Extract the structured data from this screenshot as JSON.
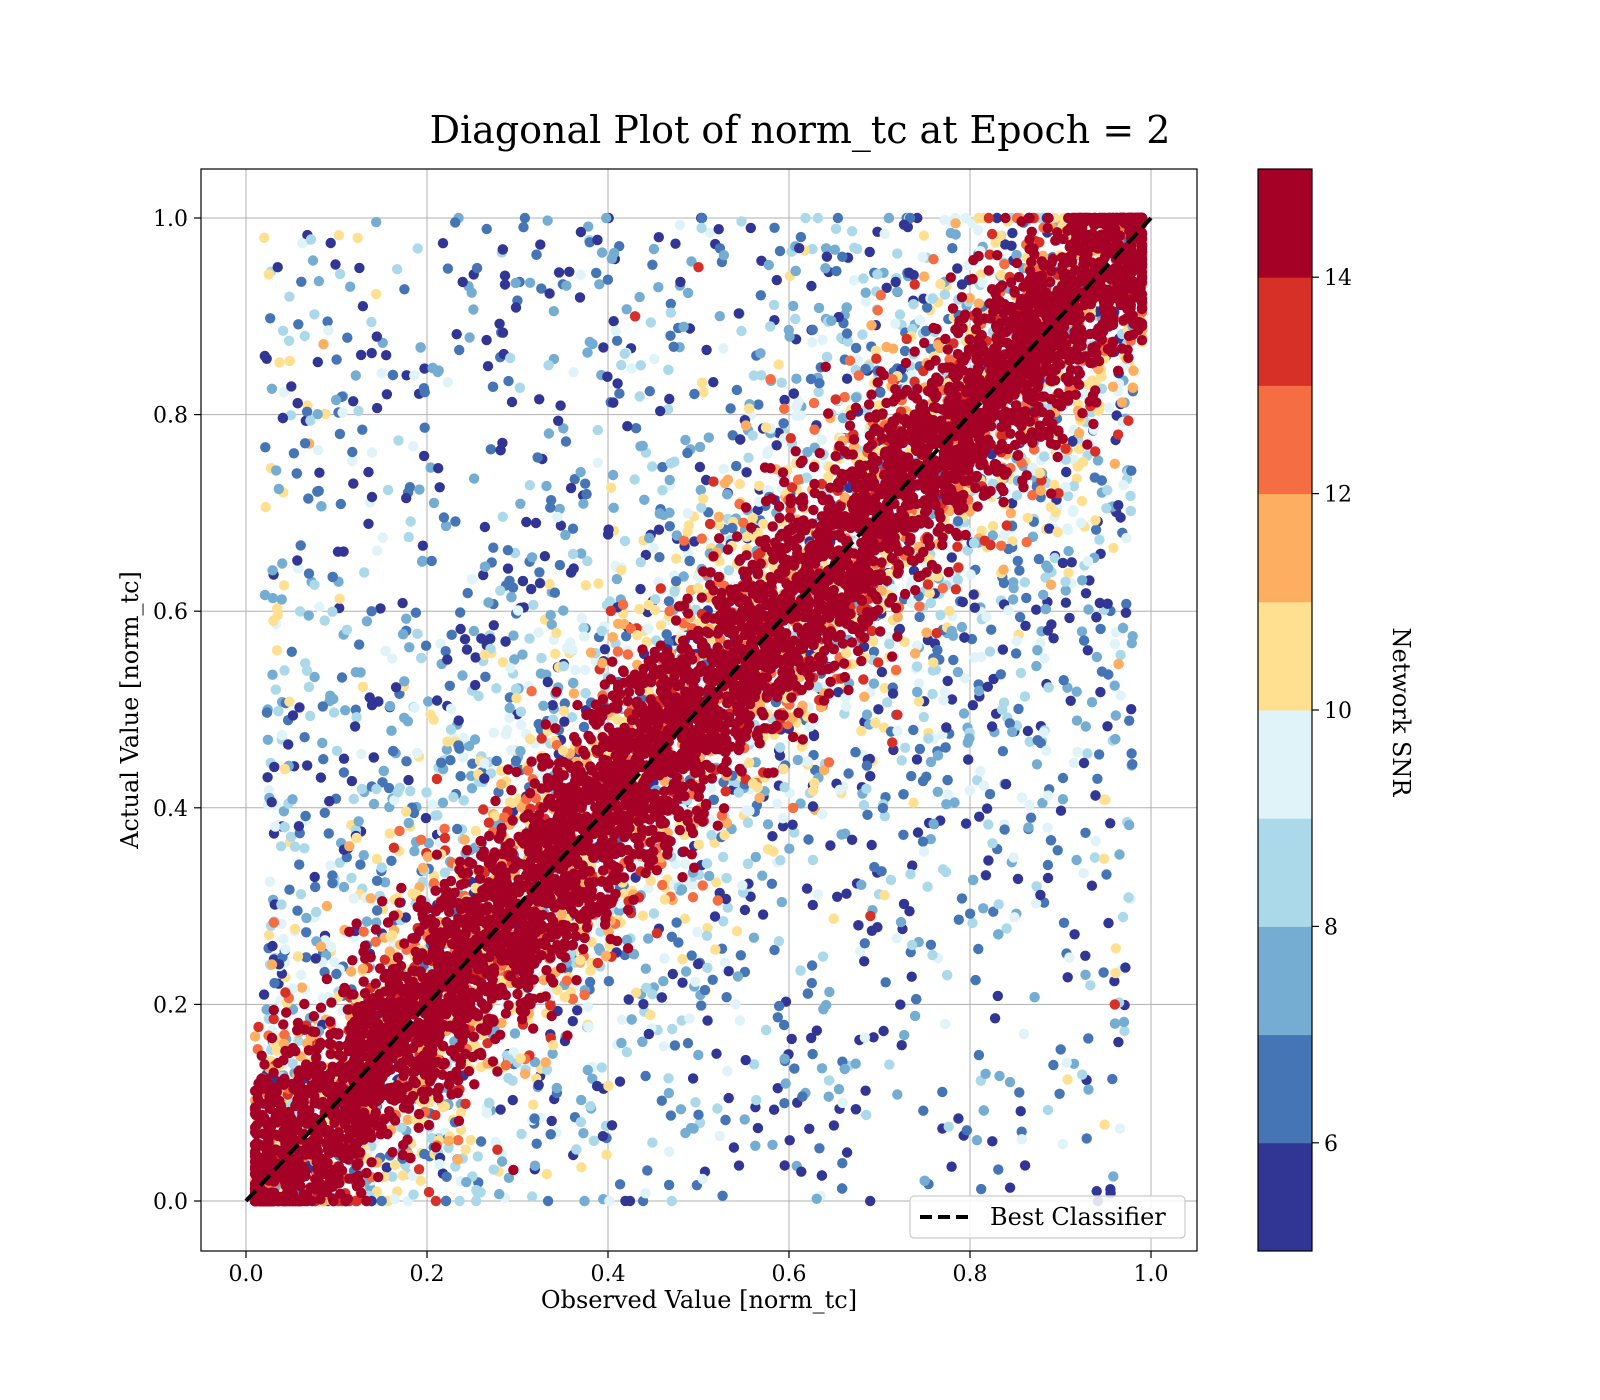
{
  "chart_data": {
    "type": "scatter",
    "title": "Diagonal Plot of norm_tc at Epoch = 2",
    "xlabel": "Observed Value [norm_tc]",
    "ylabel": "Actual Value [norm_tc]",
    "xlim": [
      -0.05,
      1.05
    ],
    "ylim": [
      -0.05,
      1.05
    ],
    "xticks": [
      "0.0",
      "0.2",
      "0.4",
      "0.6",
      "0.8",
      "1.0"
    ],
    "yticks": [
      "0.0",
      "0.2",
      "0.4",
      "0.6",
      "0.8",
      "1.0"
    ],
    "grid": true,
    "reference_line": {
      "label": "Best Classifier",
      "x": [
        0,
        1
      ],
      "y": [
        0,
        1
      ],
      "style": "dashed",
      "color": "#000000"
    },
    "legend": {
      "placement": "bottom-right",
      "entries": [
        "Best Classifier"
      ]
    },
    "colorbar": {
      "label": "Network SNR",
      "range": [
        5,
        15
      ],
      "ticks": [
        "6",
        "8",
        "10",
        "12",
        "14"
      ],
      "bands": [
        "#313695",
        "#4575b4",
        "#74add1",
        "#abd9e9",
        "#e0f3f8",
        "#fee090",
        "#fdae61",
        "#f46d43",
        "#d73027",
        "#a50026"
      ]
    },
    "description_of_points": "Dense scatter around the diagonal; high-SNR points (≥14, dark red) form a tight band along y = x, lower-SNR points (blue) spread widely across the unit square.",
    "sample_points": [
      {
        "x": 0.02,
        "y": 0.21,
        "snr": 5.5
      },
      {
        "x": 0.035,
        "y": 0.95,
        "snr": 5.5
      },
      {
        "x": 0.065,
        "y": 0.88,
        "snr": 8.0
      },
      {
        "x": 0.96,
        "y": 0.2,
        "snr": 13.5
      },
      {
        "x": 0.94,
        "y": 0.01,
        "snr": 5.5
      },
      {
        "x": 0.96,
        "y": 0.75,
        "snr": 11.5
      },
      {
        "x": 0.69,
        "y": 0.29,
        "snr": 13.5
      },
      {
        "x": 0.43,
        "y": 0.9,
        "snr": 13.5
      },
      {
        "x": 0.5,
        "y": 0.95,
        "snr": 13.5
      }
    ]
  }
}
